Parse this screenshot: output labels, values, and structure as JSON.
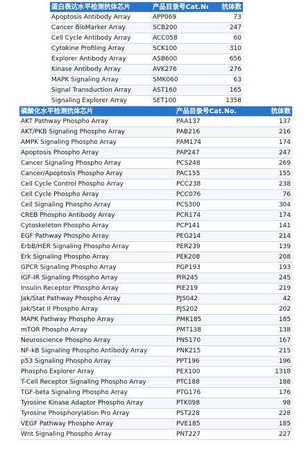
{
  "tables": [
    {
      "header": [
        "蛋白表达水平检测抗体芯片",
        "产品目录号Cat.No.",
        "抗体数"
      ],
      "rows": [
        [
          "Apoptosis Antibody Array",
          "APP069",
          73
        ],
        [
          "Cancer BioMarker Array",
          "SCB200",
          247
        ],
        [
          "Cell Cycle Antibody Array",
          "ACC058",
          60
        ],
        [
          "Cytokine Profiling Array",
          "SCK100",
          310
        ],
        [
          "Explorer Antibody Array",
          "ASB600",
          656
        ],
        [
          "Kinase Antibody Array",
          "AVK276",
          276
        ],
        [
          "MAPK Signaling Array",
          "SMK060",
          63
        ],
        [
          "Signal Transduction Array",
          "AST160",
          165
        ],
        [
          "Signaling Explorer Array",
          "SET100",
          1358
        ]
      ]
    },
    {
      "header": [
        "磷酸化水平检测抗体芯片",
        "产品目录号Cat.No.",
        "抗体数"
      ],
      "rows": [
        [
          "AKT Pathway Phospho Array",
          "PAA137",
          137
        ],
        [
          "AKT/PKB Signaling Phospho Array",
          "PAB216",
          216
        ],
        [
          "AMPK Signaling Phospho Array",
          "PAM174",
          174
        ],
        [
          "Apoptosis Phospho Array",
          "PAP247",
          247
        ],
        [
          "Cancer Signaling Phospho Array",
          "PCS248",
          269
        ],
        [
          "Cancer/Apoptosis Phospho Array",
          "PAC155",
          155
        ],
        [
          "Cell Cycle Control Phospho Array",
          "PCC238",
          238
        ],
        [
          "Cell Cycle Phospho Array",
          "PCC076",
          76
        ],
        [
          "Cell Signaling Phospho Array",
          "PCS300",
          304
        ],
        [
          "CREB Phospho Antibody Array",
          "PCR174",
          174
        ],
        [
          "Cytoskeleton Phospho Array",
          "PCP141",
          141
        ],
        [
          "EGF Pathway Phospho Array",
          "PEG214",
          214
        ],
        [
          "ErbB/HER Signaling Phospho Array",
          "PER239",
          139
        ],
        [
          "Erk Signaling Phospho Array",
          "PEK208",
          208
        ],
        [
          "GPCR Signaling Phospho Array",
          "PGP193",
          193
        ],
        [
          "IGF-IR Signaling Phospho Array",
          "PIR245",
          245
        ],
        [
          "Insulin Receptor Phospho Array",
          "PIE219",
          219
        ],
        [
          "Jak/Stat Pathway Phospho Array",
          "PJS042",
          42
        ],
        [
          "Jak/Stat II Phospho Array",
          "PJS202",
          202
        ],
        [
          "MAPK Pathway Phospho Array",
          "PMK185",
          185
        ],
        [
          "mTOR Phospho Array",
          "PMT138",
          138
        ],
        [
          "Neuroscience Phospho Array",
          "PNS170",
          167
        ],
        [
          "NF-kB Signaling Phospho Antibody Array",
          "PNK215",
          215
        ],
        [
          "p53 Signaling Phospho Array",
          "PPT196",
          196
        ],
        [
          "Phospho Explorer Array",
          "PEX100",
          1318
        ],
        [
          "T-Cell Receptor Signaling Phospho Array",
          "PTC188",
          188
        ],
        [
          "TGF-beta Signaling Phospho Array",
          "PTG176",
          176
        ],
        [
          "Tyrosine Kinase Adaptor Phospho Array",
          "PTK098",
          98
        ],
        [
          "Tyrosine Phosphorylation Pro Array",
          "PST228",
          228
        ],
        [
          "VEGF Pathway Phospho Array",
          "PVE185",
          185
        ],
        [
          "Wnt Signaling Phospho Array",
          "PNT227",
          227
        ]
      ]
    }
  ]
}
